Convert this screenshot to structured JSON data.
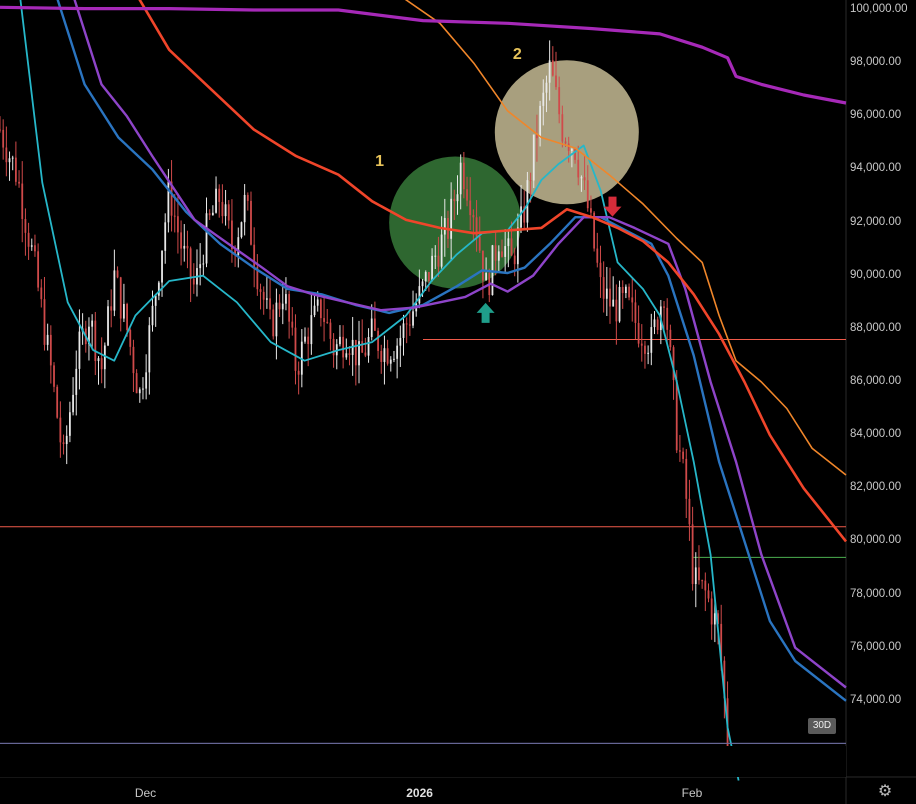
{
  "chart_data": {
    "type": "candlestick",
    "ylim": [
      72300,
      100300
    ],
    "y_ticks": [
      "100,000.00",
      "98,000.00",
      "96,000.00",
      "94,000.00",
      "92,000.00",
      "90,000.00",
      "88,000.00",
      "86,000.00",
      "84,000.00",
      "82,000.00",
      "80,000.00",
      "78,000.00",
      "76,000.00",
      "74,000.00"
    ],
    "y_tick_values": [
      100000,
      98000,
      96000,
      94000,
      92000,
      90000,
      88000,
      86000,
      84000,
      82000,
      80000,
      78000,
      76000,
      74000
    ],
    "x_ticks": [
      {
        "label": "Dec",
        "t": 0.172,
        "bold": false
      },
      {
        "label": "2026",
        "t": 0.496,
        "bold": true
      },
      {
        "label": "Feb",
        "t": 0.818,
        "bold": false
      }
    ],
    "horizontal_levels": [
      {
        "value": 87600,
        "from": 0.5,
        "to": 1.0,
        "color": "#f05a4a"
      },
      {
        "value": 80550,
        "from": 0.0,
        "to": 1.0,
        "color": "#f05a4a"
      },
      {
        "value": 79400,
        "from": 0.818,
        "to": 1.0,
        "color": "#4caf50"
      },
      {
        "value": 72400,
        "from": 0.0,
        "to": 1.0,
        "color": "#6a6a9a"
      }
    ],
    "price_path": [
      [
        0.0,
        95500
      ],
      [
        0.02,
        93800
      ],
      [
        0.04,
        90500
      ],
      [
        0.06,
        86500
      ],
      [
        0.075,
        83000
      ],
      [
        0.09,
        86800
      ],
      [
        0.105,
        88500
      ],
      [
        0.12,
        86500
      ],
      [
        0.135,
        90000
      ],
      [
        0.15,
        88000
      ],
      [
        0.165,
        85500
      ],
      [
        0.18,
        88500
      ],
      [
        0.2,
        93200
      ],
      [
        0.215,
        91000
      ],
      [
        0.23,
        89500
      ],
      [
        0.245,
        91800
      ],
      [
        0.26,
        93000
      ],
      [
        0.275,
        91000
      ],
      [
        0.29,
        92800
      ],
      [
        0.305,
        90000
      ],
      [
        0.32,
        88000
      ],
      [
        0.335,
        89500
      ],
      [
        0.35,
        86500
      ],
      [
        0.365,
        88000
      ],
      [
        0.38,
        88800
      ],
      [
        0.395,
        87200
      ],
      [
        0.41,
        87800
      ],
      [
        0.425,
        86800
      ],
      [
        0.44,
        87800
      ],
      [
        0.455,
        87200
      ],
      [
        0.47,
        87500
      ],
      [
        0.485,
        88500
      ],
      [
        0.5,
        89500
      ],
      [
        0.515,
        90800
      ],
      [
        0.53,
        91800
      ],
      [
        0.545,
        94200
      ],
      [
        0.56,
        92500
      ],
      [
        0.575,
        89500
      ],
      [
        0.59,
        91500
      ],
      [
        0.605,
        90500
      ],
      [
        0.62,
        92500
      ],
      [
        0.635,
        95500
      ],
      [
        0.65,
        97800
      ],
      [
        0.665,
        95500
      ],
      [
        0.68,
        94800
      ],
      [
        0.695,
        92500
      ],
      [
        0.71,
        89500
      ],
      [
        0.725,
        88800
      ],
      [
        0.74,
        89000
      ],
      [
        0.755,
        88000
      ],
      [
        0.77,
        87500
      ],
      [
        0.785,
        89500
      ],
      [
        0.8,
        84000
      ],
      [
        0.81,
        82000
      ],
      [
        0.82,
        78500
      ],
      [
        0.835,
        78000
      ],
      [
        0.85,
        76500
      ],
      [
        0.86,
        72500
      ]
    ],
    "series": [
      {
        "color": "#26b7c9",
        "width": 1.8,
        "points": [
          [
            0.02,
            101500
          ],
          [
            0.05,
            93500
          ],
          [
            0.08,
            89000
          ],
          [
            0.11,
            87200
          ],
          [
            0.135,
            86800
          ],
          [
            0.16,
            88500
          ],
          [
            0.2,
            89800
          ],
          [
            0.24,
            90000
          ],
          [
            0.28,
            89000
          ],
          [
            0.32,
            87500
          ],
          [
            0.36,
            86800
          ],
          [
            0.4,
            87200
          ],
          [
            0.44,
            87500
          ],
          [
            0.48,
            88500
          ],
          [
            0.51,
            89800
          ],
          [
            0.54,
            90800
          ],
          [
            0.57,
            91600
          ],
          [
            0.6,
            91700
          ],
          [
            0.62,
            92500
          ],
          [
            0.64,
            93600
          ],
          [
            0.66,
            94200
          ],
          [
            0.69,
            94900
          ],
          [
            0.71,
            93200
          ],
          [
            0.73,
            90500
          ],
          [
            0.76,
            89500
          ],
          [
            0.78,
            88500
          ],
          [
            0.8,
            86000
          ],
          [
            0.82,
            83000
          ],
          [
            0.84,
            79500
          ],
          [
            0.86,
            73000
          ],
          [
            0.873,
            71000
          ]
        ]
      },
      {
        "color": "#2a74c0",
        "width": 2.4,
        "points": [
          [
            0.06,
            101200
          ],
          [
            0.1,
            97200
          ],
          [
            0.14,
            95200
          ],
          [
            0.18,
            94000
          ],
          [
            0.22,
            92400
          ],
          [
            0.26,
            91200
          ],
          [
            0.3,
            90300
          ],
          [
            0.34,
            89500
          ],
          [
            0.38,
            89300
          ],
          [
            0.42,
            88900
          ],
          [
            0.46,
            88600
          ],
          [
            0.5,
            88900
          ],
          [
            0.54,
            89600
          ],
          [
            0.57,
            90200
          ],
          [
            0.6,
            90100
          ],
          [
            0.62,
            90300
          ],
          [
            0.65,
            91200
          ],
          [
            0.68,
            92200
          ],
          [
            0.71,
            92200
          ],
          [
            0.74,
            91700
          ],
          [
            0.77,
            91200
          ],
          [
            0.79,
            90000
          ],
          [
            0.82,
            87000
          ],
          [
            0.85,
            83000
          ],
          [
            0.88,
            80000
          ],
          [
            0.91,
            77000
          ],
          [
            0.94,
            75500
          ],
          [
            1.0,
            74000
          ]
        ]
      },
      {
        "color": "#8e44c9",
        "width": 2.4,
        "points": [
          [
            0.08,
            101200
          ],
          [
            0.12,
            97200
          ],
          [
            0.15,
            96000
          ],
          [
            0.18,
            94500
          ],
          [
            0.23,
            92100
          ],
          [
            0.27,
            91200
          ],
          [
            0.31,
            90300
          ],
          [
            0.34,
            89600
          ],
          [
            0.37,
            89300
          ],
          [
            0.41,
            89000
          ],
          [
            0.45,
            88700
          ],
          [
            0.49,
            88800
          ],
          [
            0.52,
            89000
          ],
          [
            0.55,
            89200
          ],
          [
            0.58,
            89700
          ],
          [
            0.6,
            89400
          ],
          [
            0.63,
            90000
          ],
          [
            0.66,
            91200
          ],
          [
            0.69,
            92200
          ],
          [
            0.72,
            92200
          ],
          [
            0.75,
            91800
          ],
          [
            0.79,
            91200
          ],
          [
            0.81,
            89500
          ],
          [
            0.84,
            86000
          ],
          [
            0.87,
            83000
          ],
          [
            0.9,
            79500
          ],
          [
            0.94,
            76000
          ],
          [
            1.0,
            74500
          ]
        ]
      },
      {
        "color": "#f0452a",
        "width": 2.6,
        "points": [
          [
            0.15,
            101200
          ],
          [
            0.2,
            98500
          ],
          [
            0.25,
            97000
          ],
          [
            0.3,
            95500
          ],
          [
            0.35,
            94500
          ],
          [
            0.4,
            93800
          ],
          [
            0.44,
            92800
          ],
          [
            0.48,
            92100
          ],
          [
            0.52,
            91800
          ],
          [
            0.56,
            91600
          ],
          [
            0.6,
            91700
          ],
          [
            0.64,
            91800
          ],
          [
            0.67,
            92500
          ],
          [
            0.7,
            92200
          ],
          [
            0.73,
            91800
          ],
          [
            0.76,
            91300
          ],
          [
            0.79,
            90500
          ],
          [
            0.82,
            89300
          ],
          [
            0.85,
            87800
          ],
          [
            0.88,
            86000
          ],
          [
            0.91,
            84000
          ],
          [
            0.95,
            82000
          ],
          [
            1.0,
            80000
          ]
        ]
      },
      {
        "color": "#f0862a",
        "width": 1.6,
        "points": [
          [
            0.47,
            100600
          ],
          [
            0.52,
            99500
          ],
          [
            0.56,
            98000
          ],
          [
            0.6,
            96200
          ],
          [
            0.64,
            95200
          ],
          [
            0.68,
            94800
          ],
          [
            0.72,
            93800
          ],
          [
            0.76,
            92700
          ],
          [
            0.8,
            91400
          ],
          [
            0.83,
            90500
          ],
          [
            0.85,
            88500
          ],
          [
            0.87,
            86800
          ],
          [
            0.9,
            86000
          ],
          [
            0.93,
            85000
          ],
          [
            0.96,
            83500
          ],
          [
            1.0,
            82500
          ]
        ]
      },
      {
        "color": "#a629b8",
        "width": 3.2,
        "points": [
          [
            0.0,
            100100
          ],
          [
            0.1,
            100050
          ],
          [
            0.2,
            100050
          ],
          [
            0.3,
            100000
          ],
          [
            0.4,
            100000
          ],
          [
            0.5,
            99600
          ],
          [
            0.6,
            99500
          ],
          [
            0.7,
            99300
          ],
          [
            0.78,
            99100
          ],
          [
            0.83,
            98600
          ],
          [
            0.86,
            98200
          ],
          [
            0.87,
            97500
          ],
          [
            0.9,
            97200
          ],
          [
            0.95,
            96800
          ],
          [
            1.0,
            96500
          ]
        ]
      }
    ],
    "shapes": [
      {
        "type": "circle",
        "label": "1",
        "t": 0.538,
        "y": 92000,
        "r_px": 66,
        "fill": "#3e8a40"
      },
      {
        "type": "circle",
        "label": "2",
        "t": 0.67,
        "y": 95400,
        "r_px": 72,
        "fill": "#e0d4a8"
      }
    ],
    "arrows": [
      {
        "t": 0.574,
        "y": 88600,
        "direction": "up",
        "color": "#1f9e8a"
      },
      {
        "t": 0.724,
        "y": 92600,
        "direction": "down",
        "color": "#d62c3a"
      }
    ],
    "timeframe_badge": "30D"
  }
}
